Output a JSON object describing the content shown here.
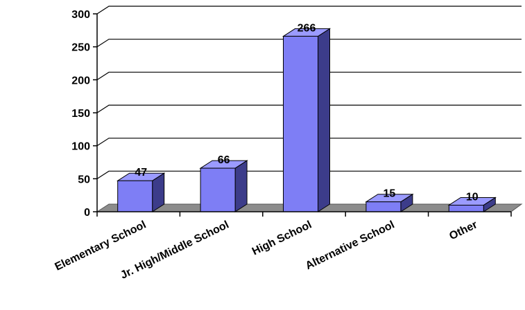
{
  "chart_data": {
    "type": "bar",
    "categories": [
      "Elementary School",
      "Jr. High/Middle School",
      "High School",
      "Alternative School",
      "Other"
    ],
    "values": [
      47,
      66,
      266,
      15,
      10
    ],
    "data_labels": [
      "47",
      "66",
      "266",
      "15",
      "10"
    ],
    "ylim": [
      0,
      300
    ],
    "yticks": [
      0,
      50,
      100,
      150,
      200,
      250,
      300
    ],
    "ytick_labels": [
      "0",
      "50",
      "100",
      "150",
      "200",
      "250",
      "300"
    ],
    "grid": true,
    "legend": "none",
    "style": "3d",
    "colors": {
      "bar_front": "#7e7ef5",
      "bar_top": "#9b9bff",
      "bar_side": "#3c3c8a",
      "floor": "#8c8c8c",
      "grid": "#000000"
    }
  }
}
